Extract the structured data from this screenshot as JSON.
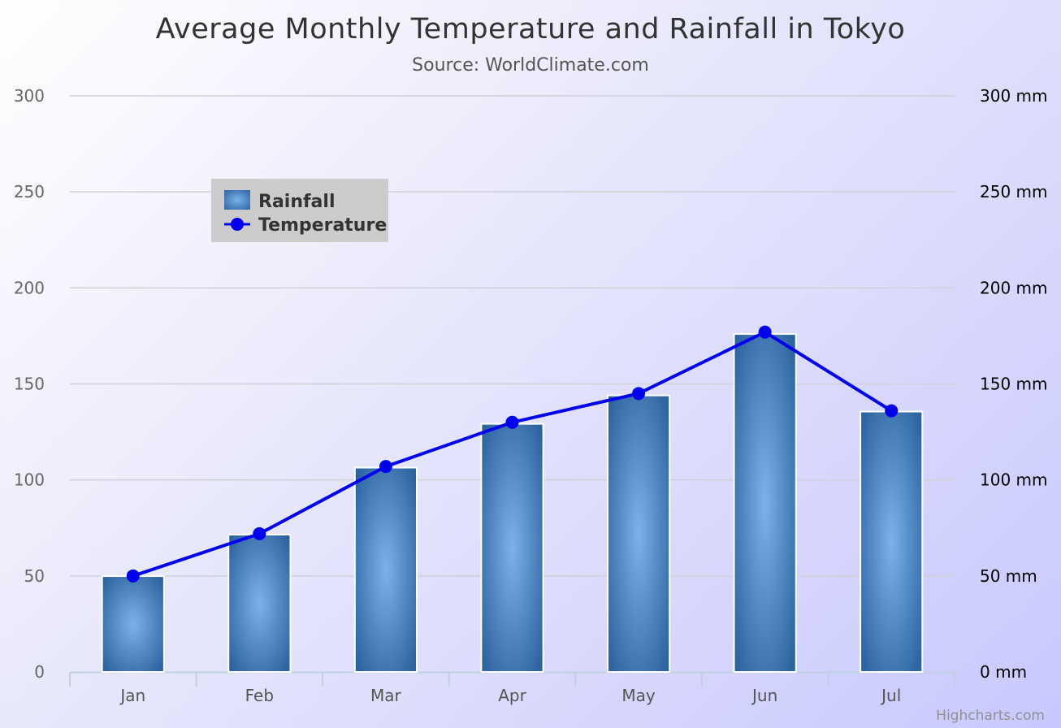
{
  "chart_data": {
    "type": "bar",
    "title": "Average Monthly Temperature and Rainfall in Tokyo",
    "subtitle": "Source: WorldClimate.com",
    "categories": [
      "Jan",
      "Feb",
      "Mar",
      "Apr",
      "May",
      "Jun",
      "Jul"
    ],
    "series": [
      {
        "name": "Rainfall",
        "type": "bar",
        "axis": "right",
        "color": "#4572A7",
        "values": [
          49.9,
          71.5,
          106.4,
          129.2,
          144.0,
          176.0,
          135.6
        ]
      },
      {
        "name": "Temperature",
        "type": "line",
        "axis": "left",
        "color": "#0000EE",
        "values": [
          50,
          72,
          107,
          130,
          145,
          177,
          136
        ]
      }
    ],
    "y_left": {
      "ylim": [
        0,
        300
      ],
      "ticks": [
        0,
        50,
        100,
        150,
        200,
        250,
        300
      ],
      "tick_labels": [
        "0",
        "50",
        "100",
        "150",
        "200",
        "250",
        "300"
      ]
    },
    "y_right": {
      "ylim": [
        0,
        300
      ],
      "ticks": [
        0,
        50,
        100,
        150,
        200,
        250,
        300
      ],
      "tick_labels": [
        "0 mm",
        "50 mm",
        "100 mm",
        "150 mm",
        "200 mm",
        "250 mm",
        "300 mm"
      ]
    },
    "grid": true,
    "legend_position": "top-left",
    "credit": "Highcharts.com"
  }
}
